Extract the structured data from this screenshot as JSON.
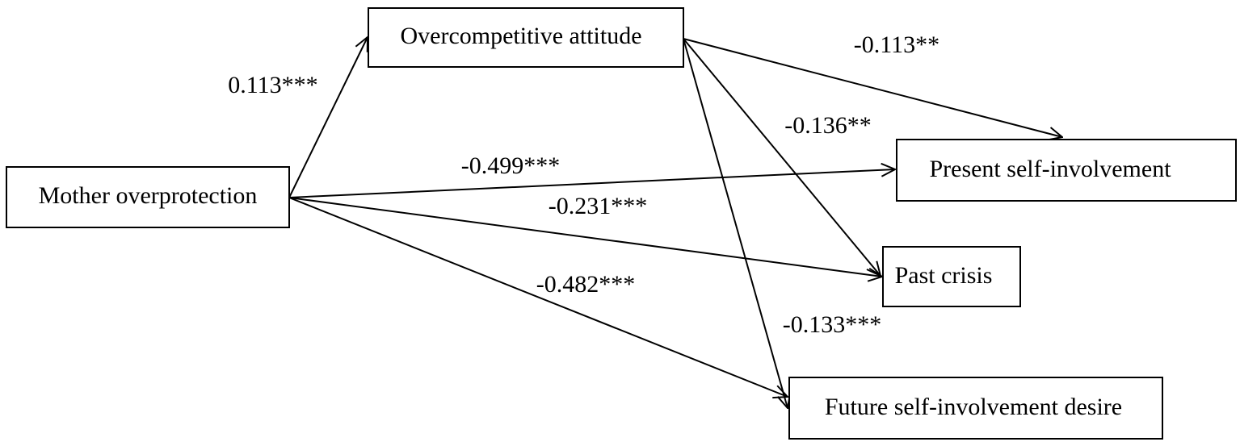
{
  "nodes": [
    {
      "label": "Mother overprotection"
    },
    {
      "label": "Overcompetitive attitude"
    },
    {
      "label": "Present self-involvement"
    },
    {
      "label": "Past crisis"
    },
    {
      "label": "Future self-involvement desire"
    }
  ],
  "edges": [
    {
      "from": "Mother overprotection",
      "to": "Overcompetitive attitude",
      "label": "0.113***"
    },
    {
      "from": "Overcompetitive attitude",
      "to": "Present self-involvement",
      "label": "-0.113**"
    },
    {
      "from": "Overcompetitive attitude",
      "to": "Past crisis",
      "label": "-0.136**"
    },
    {
      "from": "Overcompetitive attitude",
      "to": "Future self-involvement desire",
      "label": "-0.133***"
    },
    {
      "from": "Mother overprotection",
      "to": "Present self-involvement",
      "label": "-0.499***"
    },
    {
      "from": "Mother overprotection",
      "to": "Past crisis",
      "label": "-0.231***"
    },
    {
      "from": "Mother overprotection",
      "to": "Future self-involvement desire",
      "label": "-0.482***"
    }
  ]
}
